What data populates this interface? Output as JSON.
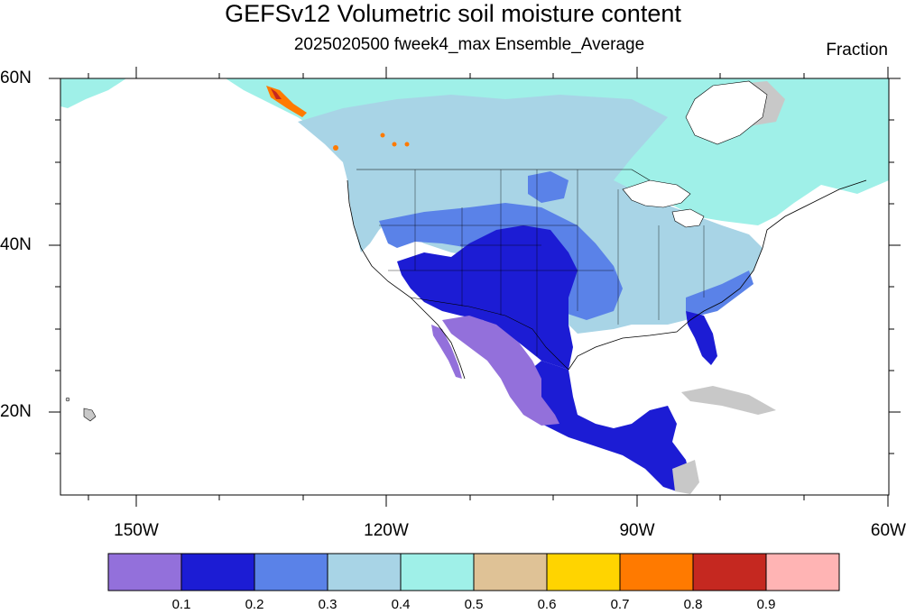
{
  "title": "GEFSv12 Volumetric soil moisture content",
  "subtitle": "2025020500 fweek4_max Ensemble_Average",
  "units": "Fraction",
  "map": {
    "projection": "cylindrical-equidistant",
    "lon_range": [
      -160,
      -60
    ],
    "lat_range": [
      10,
      60
    ],
    "lat_labels": [
      "60N",
      "40N",
      "20N"
    ],
    "lat_values": [
      60,
      40,
      20
    ],
    "lon_labels": [
      "150W",
      "120W",
      "90W",
      "60W"
    ],
    "lon_values": [
      -150,
      -120,
      -90,
      -60
    ],
    "ocean_color": "#ffffff",
    "missing_color": "#c8c8c8",
    "boundaries_color": "#000000"
  },
  "colorbar": {
    "colors": [
      "#9370db",
      "#1c1cd4",
      "#5a82e8",
      "#a8d4e6",
      "#9ff0e8",
      "#dfc296",
      "#ffd400",
      "#ff7a00",
      "#c52820",
      "#ffb4b4"
    ],
    "labels": [
      "0.1",
      "0.2",
      "0.3",
      "0.4",
      "0.5",
      "0.6",
      "0.7",
      "0.8",
      "0.9"
    ]
  }
}
